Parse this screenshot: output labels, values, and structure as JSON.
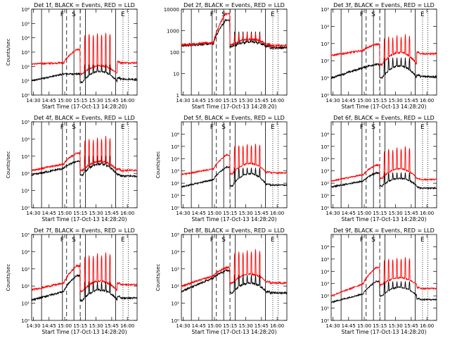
{
  "chart_data": {
    "type": "line",
    "layout": "3x3 grid",
    "x_start_label": "Start Time (17-Oct-13 14:28:20)",
    "x_ticks": [
      "14:30",
      "14:45",
      "15:00",
      "15:15",
      "15:30",
      "15:45",
      "16:00"
    ],
    "x_tick_minutes": [
      1.67,
      16.67,
      31.67,
      46.67,
      61.67,
      76.67,
      91.67
    ],
    "x_range_minutes": [
      0,
      101
    ],
    "ylabel": "Counts/sec",
    "series_names": [
      "Events (BLACK)",
      "LLD (RED)"
    ],
    "series_colors": {
      "events": "#000000",
      "lld": "#ff0000"
    },
    "vertical_markers": [
      {
        "label": "",
        "minute": 9.5,
        "style": "solid"
      },
      {
        "label": "F",
        "minute": 29.5,
        "style": "solid"
      },
      {
        "label": "",
        "minute": 33.5,
        "style": "dashed"
      },
      {
        "label": "S",
        "minute": 40.5,
        "style": "solid"
      },
      {
        "label": "",
        "minute": 46.5,
        "style": "dashed"
      },
      {
        "label": "",
        "minute": 51.5,
        "style": "solid"
      },
      {
        "label": "",
        "minute": 80.5,
        "style": "solid"
      },
      {
        "label": "E",
        "minute": 87.5,
        "style": "dotted"
      },
      {
        "label": "",
        "minute": 92.5,
        "style": "dotted"
      }
    ],
    "panels": [
      {
        "title": "Det 1f, BLACK = Events, RED = LLD",
        "ylim": [
          1,
          1000000
        ],
        "y_ticks": [
          "10⁰",
          "10¹",
          "10²",
          "10³",
          "10⁴",
          "10⁵",
          "10⁶"
        ],
        "show_ylabel": true,
        "show_xlabel": true,
        "events": {
          "pre": 10,
          "pre_end": 30,
          "peak_time": 43,
          "peak": 30,
          "post_drop": 8,
          "hump": 45,
          "end": 13
        },
        "lld": {
          "pre": 150,
          "pre_end": 180,
          "peak_time": 43,
          "peak": 1500,
          "post_drop": 30,
          "hump": 110,
          "end": 180
        },
        "spike_minutes": [
          51,
          55,
          59,
          63,
          67,
          71,
          75
        ],
        "spike_values": [
          15000,
          18000,
          15000,
          20000,
          16000,
          22000,
          18000
        ]
      },
      {
        "title": "Det 2f, BLACK = Events, RED = LLD",
        "ylim": [
          1,
          10000
        ],
        "y_ticks": [
          "1",
          "10",
          "100",
          "1000",
          "10000"
        ],
        "show_ylabel": false,
        "show_xlabel": true,
        "events": {
          "pre": 200,
          "pre_end": 250,
          "peak_time": 42,
          "peak": 3000,
          "post_drop": 180,
          "hump": 300,
          "end": 160
        },
        "lld": {
          "pre": 220,
          "pre_end": 280,
          "peak_time": 42,
          "peak": 6000,
          "post_drop": 220,
          "hump": 400,
          "end": 200
        },
        "spike_minutes": [
          51,
          55,
          59,
          63,
          67,
          71,
          75
        ],
        "spike_values": [
          700,
          750,
          700,
          800,
          700,
          800,
          700
        ]
      },
      {
        "title": "Det 3f, BLACK = Events, RED = LLD",
        "ylim": [
          1,
          100000
        ],
        "y_ticks": [
          "10⁰",
          "10¹",
          "10²",
          "10³",
          "10⁴",
          "10⁵"
        ],
        "show_ylabel": false,
        "show_xlabel": true,
        "events": {
          "pre": 10,
          "pre_end": 40,
          "peak_time": 43,
          "peak": 60,
          "post_drop": 10,
          "hump": 50,
          "end": 12
        },
        "lld": {
          "pre": 200,
          "pre_end": 400,
          "peak_time": 43,
          "peak": 900,
          "post_drop": 60,
          "hump": 300,
          "end": 250
        },
        "spike_minutes": [
          51,
          55,
          59,
          63,
          67,
          71,
          75
        ],
        "spike_values": [
          2000,
          2500,
          2200,
          3000,
          2400,
          3500,
          2800
        ]
      },
      {
        "title": "Det 4f, BLACK = Events, RED = LLD",
        "ylim": [
          1,
          100000
        ],
        "y_ticks": [
          "10⁰",
          "10¹",
          "10²",
          "10³",
          "10⁴",
          "10⁵"
        ],
        "show_ylabel": true,
        "show_xlabel": true,
        "events": {
          "pre": 80,
          "pre_end": 200,
          "peak_time": 43,
          "peak": 500,
          "post_drop": 80,
          "hump": 350,
          "end": 70
        },
        "lld": {
          "pre": 150,
          "pre_end": 350,
          "peak_time": 43,
          "peak": 1500,
          "post_drop": 150,
          "hump": 500,
          "end": 150
        },
        "spike_minutes": [
          51,
          55,
          59,
          63,
          67,
          71,
          75
        ],
        "spike_values": [
          8000,
          10000,
          9000,
          12000,
          10000,
          15000,
          11000
        ]
      },
      {
        "title": "Det 5f, BLACK = Events, RED = LLD",
        "ylim": [
          1,
          10000000
        ],
        "y_ticks": [
          "10⁰",
          "10¹",
          "10²",
          "10³",
          "10⁴",
          "10⁵",
          "10⁶"
        ],
        "show_ylabel": true,
        "show_xlabel": true,
        "events": {
          "pre": 50,
          "pre_end": 200,
          "peak_time": 43,
          "peak": 2000,
          "post_drop": 60,
          "hump": 600,
          "end": 70
        },
        "lld": {
          "pre": 500,
          "pre_end": 1500,
          "peak_time": 43,
          "peak": 20000,
          "post_drop": 600,
          "hump": 4000,
          "end": 700
        },
        "spike_minutes": [
          51,
          55,
          59,
          63,
          67,
          71,
          75
        ],
        "spike_values": [
          100000,
          120000,
          110000,
          150000,
          120000,
          160000,
          130000
        ]
      },
      {
        "title": "Det 6f, BLACK = Events, RED = LLD",
        "ylim": [
          1,
          10000000
        ],
        "y_ticks": [
          "10⁰",
          "10¹",
          "10²",
          "10³",
          "10⁴",
          "10⁵",
          "10⁶"
        ],
        "show_ylabel": false,
        "show_xlabel": true,
        "events": {
          "pre": 50,
          "pre_end": 150,
          "peak_time": 43,
          "peak": 700,
          "post_drop": 60,
          "hump": 250,
          "end": 40
        },
        "lld": {
          "pre": 150,
          "pre_end": 500,
          "peak_time": 43,
          "peak": 3000,
          "post_drop": 250,
          "hump": 1500,
          "end": 200
        },
        "spike_minutes": [
          51,
          55,
          59,
          63,
          67,
          71,
          75
        ],
        "spike_values": [
          40000,
          60000,
          50000,
          80000,
          60000,
          100000,
          70000
        ]
      },
      {
        "title": "Det 7f, BLACK = Events, RED = LLD",
        "ylim": [
          1,
          100000
        ],
        "y_ticks": [
          "10⁰",
          "10¹",
          "10²",
          "10³",
          "10⁴",
          "10⁵"
        ],
        "show_ylabel": true,
        "show_xlabel": true,
        "events": {
          "pre": 15,
          "pre_end": 50,
          "peak_time": 43,
          "peak": 400,
          "post_drop": 15,
          "hump": 60,
          "end": 20
        },
        "lld": {
          "pre": 60,
          "pre_end": 150,
          "peak_time": 43,
          "peak": 1500,
          "post_drop": 50,
          "hump": 200,
          "end": 120
        },
        "spike_minutes": [
          51,
          55,
          59,
          63,
          67,
          71,
          75
        ],
        "spike_values": [
          5000,
          6000,
          5500,
          8000,
          6000,
          9000,
          7000
        ]
      },
      {
        "title": "Det 8f, BLACK = Events, RED = LLD",
        "ylim": [
          1,
          100000
        ],
        "y_ticks": [
          "10⁰",
          "10¹",
          "10²",
          "10³",
          "10⁴",
          "10⁵"
        ],
        "show_ylabel": true,
        "show_xlabel": true,
        "events": {
          "pre": 50,
          "pre_end": 300,
          "peak_time": 43,
          "peak": 800,
          "post_drop": 40,
          "hump": 150,
          "end": 40
        },
        "lld": {
          "pre": 100,
          "pre_end": 400,
          "peak_time": 43,
          "peak": 1200,
          "post_drop": 150,
          "hump": 500,
          "end": 150
        },
        "spike_minutes": [
          51,
          55,
          59,
          63,
          67,
          71,
          75
        ],
        "spike_values": [
          8000,
          10000,
          9000,
          12000,
          10000,
          14000,
          11000
        ]
      },
      {
        "title": "Det 9f, BLACK = Events, RED = LLD",
        "ylim": [
          1,
          10000000
        ],
        "y_ticks": [
          "10⁰",
          "10¹",
          "10²",
          "10³",
          "10⁴",
          "10⁵",
          "10⁶"
        ],
        "show_ylabel": false,
        "show_xlabel": true,
        "events": {
          "pre": 30,
          "pre_end": 150,
          "peak_time": 43,
          "peak": 1500,
          "post_drop": 100,
          "hump": 500,
          "end": 50
        },
        "lld": {
          "pre": 100,
          "pre_end": 1000,
          "peak_time": 43,
          "peak": 20000,
          "post_drop": 800,
          "hump": 3000,
          "end": 400
        },
        "spike_minutes": [
          51,
          55,
          59,
          63,
          67,
          71,
          75
        ],
        "spike_values": [
          80000,
          100000,
          90000,
          120000,
          100000,
          140000,
          110000
        ]
      }
    ]
  }
}
